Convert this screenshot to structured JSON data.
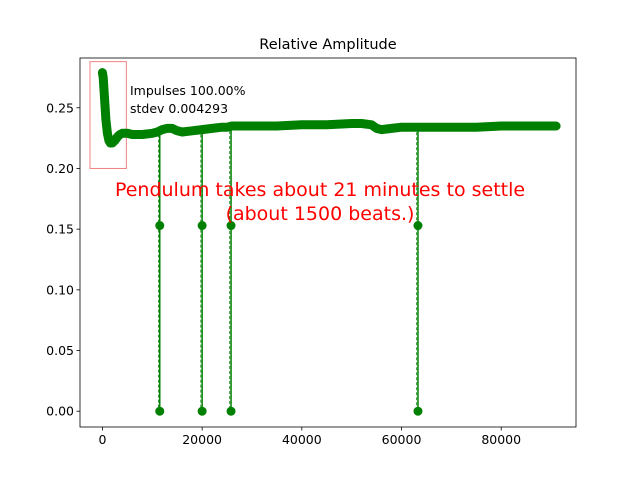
{
  "chart_data": {
    "type": "line",
    "title": "Relative Amplitude",
    "xlabel": "",
    "ylabel": "",
    "xlim": [
      -4500,
      95000
    ],
    "ylim": [
      -0.013,
      0.291
    ],
    "x_ticks": [
      {
        "value": 0,
        "label": "0"
      },
      {
        "value": 20000,
        "label": "20000"
      },
      {
        "value": 40000,
        "label": "40000"
      },
      {
        "value": 60000,
        "label": "60000"
      },
      {
        "value": 80000,
        "label": "80000"
      }
    ],
    "y_ticks": [
      {
        "value": 0.0,
        "label": "0.00"
      },
      {
        "value": 0.05,
        "label": "0.05"
      },
      {
        "value": 0.1,
        "label": "0.10"
      },
      {
        "value": 0.15,
        "label": "0.15"
      },
      {
        "value": 0.2,
        "label": "0.20"
      },
      {
        "value": 0.25,
        "label": "0.25"
      }
    ],
    "grid": false,
    "series": [
      {
        "color": "#008000",
        "x": [
          0,
          150,
          300,
          500,
          700,
          1000,
          1300,
          1600,
          2000,
          2500,
          3000,
          3500,
          4000,
          5000,
          6000,
          8000,
          10000,
          11000,
          12000,
          13000,
          14000,
          15000,
          16000,
          18000,
          20000,
          22000,
          24000,
          25000,
          26000,
          28000,
          30000,
          35000,
          40000,
          45000,
          50000,
          52000,
          54000,
          55000,
          56000,
          58000,
          60000,
          62000,
          63500,
          66000,
          70000,
          75000,
          80000,
          85000,
          88000,
          91000
        ],
        "y": [
          0.279,
          0.275,
          0.266,
          0.253,
          0.24,
          0.229,
          0.223,
          0.221,
          0.221,
          0.223,
          0.226,
          0.228,
          0.229,
          0.229,
          0.228,
          0.228,
          0.229,
          0.23,
          0.232,
          0.233,
          0.233,
          0.231,
          0.23,
          0.231,
          0.232,
          0.233,
          0.234,
          0.234,
          0.235,
          0.235,
          0.235,
          0.235,
          0.236,
          0.236,
          0.237,
          0.237,
          0.236,
          0.233,
          0.232,
          0.233,
          0.234,
          0.234,
          0.234,
          0.234,
          0.234,
          0.234,
          0.235,
          0.235,
          0.235,
          0.235
        ]
      }
    ],
    "dropouts": [
      {
        "x": 11500,
        "top": 0.232,
        "middle": 0.153,
        "bottom": 0.0
      },
      {
        "x": 20000,
        "top": 0.232,
        "middle": 0.153,
        "bottom": 0.0
      },
      {
        "x": 25800,
        "top": 0.235,
        "middle": 0.153,
        "bottom": 0.0
      },
      {
        "x": 63300,
        "top": 0.234,
        "middle": 0.153,
        "bottom": 0.0
      }
    ],
    "highlight_box": {
      "x0": -2500,
      "x1": 4800,
      "y0": 0.2,
      "y1": 0.288,
      "color": "#f08080"
    },
    "stats_lines": [
      "Impulses 100.00%",
      "stdev 0.004293"
    ],
    "annotation_lines": [
      "Pendulum takes about 21 minutes to settle",
      "(about 1500 beats.)"
    ],
    "annotation_color": "#ff0000"
  }
}
